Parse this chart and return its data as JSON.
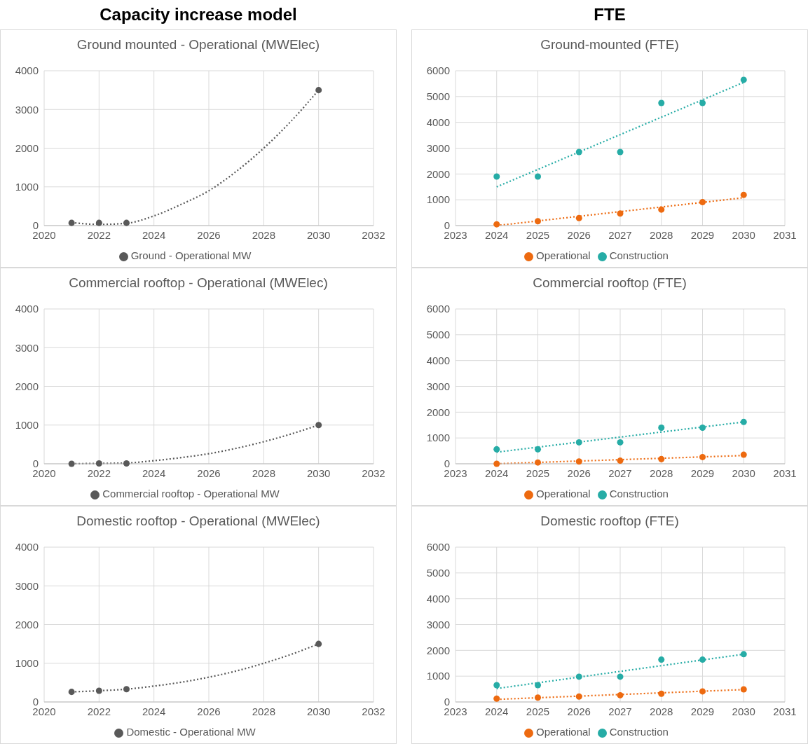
{
  "chart_data": [
    {
      "type": "scatter",
      "title": "Ground mounted - Operational (MWElec)",
      "annotations": [
        "Capacity increase model"
      ],
      "xlim": [
        2020,
        2032
      ],
      "xticks": [
        2020,
        2022,
        2024,
        2026,
        2028,
        2030,
        2032
      ],
      "ylim": [
        0,
        4000
      ],
      "yticks": [
        0,
        1000,
        2000,
        3000,
        4000
      ],
      "grid": true,
      "legend": "bottom",
      "series": [
        {
          "name": "Ground - Operational MW",
          "marker": "circle",
          "color": "#595959",
          "x": [
            2021,
            2022,
            2023,
            2030
          ],
          "values": [
            70,
            70,
            70,
            3500
          ]
        },
        {
          "type": "line",
          "marker": "none",
          "line_style": "dotted",
          "color": "#595959",
          "x": [
            2021,
            2022,
            2023,
            2024,
            2025,
            2026,
            2027,
            2028,
            2029,
            2030
          ],
          "values": [
            80,
            30,
            60,
            250,
            550,
            900,
            1400,
            2000,
            2700,
            3500
          ]
        }
      ]
    },
    {
      "type": "scatter",
      "title": "Ground-mounted (FTE)",
      "annotations": [
        "FTE"
      ],
      "xlim": [
        2023,
        2031
      ],
      "xticks": [
        2023,
        2024,
        2025,
        2026,
        2027,
        2028,
        2029,
        2030,
        2031
      ],
      "ylim": [
        0,
        6000
      ],
      "yticks": [
        0,
        1000,
        2000,
        3000,
        4000,
        5000,
        6000
      ],
      "grid": true,
      "legend": "bottom",
      "series": [
        {
          "name": "Operational",
          "marker": "circle",
          "color": "#ed6a10",
          "x": [
            2024,
            2025,
            2026,
            2027,
            2028,
            2029,
            2030
          ],
          "values": [
            50,
            170,
            290,
            470,
            620,
            910,
            1190
          ]
        },
        {
          "name": "Construction",
          "marker": "circle",
          "color": "#26aca6",
          "x": [
            2024,
            2025,
            2026,
            2027,
            2028,
            2029,
            2030
          ],
          "values": [
            1900,
            1900,
            2850,
            2850,
            4750,
            4750,
            5650
          ]
        },
        {
          "type": "line",
          "marker": "none",
          "line_style": "dotted",
          "color": "#ed6a10",
          "x": [
            2024,
            2030
          ],
          "values": [
            0,
            1080
          ]
        },
        {
          "type": "line",
          "marker": "none",
          "line_style": "dotted",
          "color": "#26aca6",
          "x": [
            2024,
            2030
          ],
          "values": [
            1500,
            5550
          ]
        }
      ]
    },
    {
      "type": "scatter",
      "title": "Commercial rooftop - Operational (MWElec)",
      "xlim": [
        2020,
        2032
      ],
      "xticks": [
        2020,
        2022,
        2024,
        2026,
        2028,
        2030,
        2032
      ],
      "ylim": [
        0,
        4000
      ],
      "yticks": [
        0,
        1000,
        2000,
        3000,
        4000
      ],
      "grid": true,
      "legend": "bottom",
      "series": [
        {
          "name": "Commercial rooftop - Operational MW",
          "marker": "circle",
          "color": "#595959",
          "x": [
            2021,
            2022,
            2023,
            2030
          ],
          "values": [
            0,
            10,
            10,
            1000
          ]
        },
        {
          "type": "line",
          "marker": "none",
          "line_style": "dotted",
          "color": "#595959",
          "x": [
            2021,
            2022,
            2023,
            2024,
            2025,
            2026,
            2027,
            2028,
            2029,
            2030
          ],
          "values": [
            0,
            10,
            20,
            80,
            160,
            260,
            400,
            570,
            770,
            1000
          ]
        }
      ]
    },
    {
      "type": "scatter",
      "title": "Commercial rooftop (FTE)",
      "xlim": [
        2023,
        2031
      ],
      "xticks": [
        2023,
        2024,
        2025,
        2026,
        2027,
        2028,
        2029,
        2030,
        2031
      ],
      "ylim": [
        0,
        6000
      ],
      "yticks": [
        0,
        1000,
        2000,
        3000,
        4000,
        5000,
        6000
      ],
      "grid": true,
      "legend": "bottom",
      "series": [
        {
          "name": "Operational",
          "marker": "circle",
          "color": "#ed6a10",
          "x": [
            2024,
            2025,
            2026,
            2027,
            2028,
            2029,
            2030
          ],
          "values": [
            0,
            50,
            90,
            120,
            180,
            260,
            350
          ]
        },
        {
          "name": "Construction",
          "marker": "circle",
          "color": "#26aca6",
          "x": [
            2024,
            2025,
            2026,
            2027,
            2028,
            2029,
            2030
          ],
          "values": [
            560,
            560,
            830,
            830,
            1400,
            1400,
            1620
          ]
        },
        {
          "type": "line",
          "marker": "none",
          "line_style": "dotted",
          "color": "#ed6a10",
          "x": [
            2024,
            2030
          ],
          "values": [
            0,
            320
          ]
        },
        {
          "type": "line",
          "marker": "none",
          "line_style": "dotted",
          "color": "#26aca6",
          "x": [
            2024,
            2030
          ],
          "values": [
            450,
            1620
          ]
        }
      ]
    },
    {
      "type": "scatter",
      "title": "Domestic rooftop - Operational (MWElec)",
      "xlim": [
        2020,
        2032
      ],
      "xticks": [
        2020,
        2022,
        2024,
        2026,
        2028,
        2030,
        2032
      ],
      "ylim": [
        0,
        4000
      ],
      "yticks": [
        0,
        1000,
        2000,
        3000,
        4000
      ],
      "grid": true,
      "legend": "bottom",
      "series": [
        {
          "name": "Domestic - Operational MW",
          "marker": "circle",
          "color": "#595959",
          "x": [
            2021,
            2022,
            2023,
            2030
          ],
          "values": [
            260,
            290,
            330,
            1500
          ]
        },
        {
          "type": "line",
          "marker": "none",
          "line_style": "dotted",
          "color": "#595959",
          "x": [
            2021,
            2022,
            2023,
            2024,
            2025,
            2026,
            2027,
            2028,
            2029,
            2030
          ],
          "values": [
            260,
            290,
            330,
            410,
            510,
            640,
            800,
            1000,
            1230,
            1500
          ]
        }
      ]
    },
    {
      "type": "scatter",
      "title": "Domestic rooftop (FTE)",
      "xlim": [
        2023,
        2031
      ],
      "xticks": [
        2023,
        2024,
        2025,
        2026,
        2027,
        2028,
        2029,
        2030,
        2031
      ],
      "ylim": [
        0,
        6000
      ],
      "yticks": [
        0,
        1000,
        2000,
        3000,
        4000,
        5000,
        6000
      ],
      "grid": true,
      "legend": "bottom",
      "series": [
        {
          "name": "Operational",
          "marker": "circle",
          "color": "#ed6a10",
          "x": [
            2024,
            2025,
            2026,
            2027,
            2028,
            2029,
            2030
          ],
          "values": [
            130,
            170,
            210,
            260,
            320,
            410,
            490
          ]
        },
        {
          "name": "Construction",
          "marker": "circle",
          "color": "#26aca6",
          "x": [
            2024,
            2025,
            2026,
            2027,
            2028,
            2029,
            2030
          ],
          "values": [
            650,
            650,
            980,
            980,
            1640,
            1640,
            1850
          ]
        },
        {
          "type": "line",
          "marker": "none",
          "line_style": "dotted",
          "color": "#ed6a10",
          "x": [
            2024,
            2030
          ],
          "values": [
            100,
            480
          ]
        },
        {
          "type": "line",
          "marker": "none",
          "line_style": "dotted",
          "color": "#26aca6",
          "x": [
            2024,
            2030
          ],
          "values": [
            520,
            1850
          ]
        }
      ]
    }
  ]
}
